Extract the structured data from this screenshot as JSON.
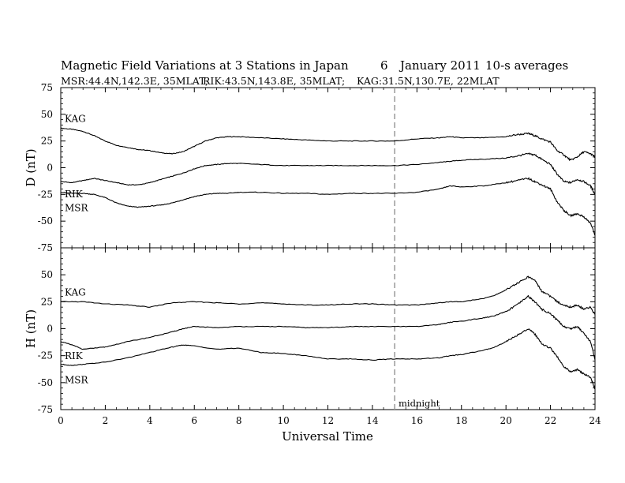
{
  "page": {
    "title_station": "Magnetic Field Variations at 3 Stations in Japan",
    "title_day": "6",
    "title_month_year": "January 2011",
    "title_avg": "10-s averages",
    "subtitle_msr": "MSR:44.4N,142.3E, 35MLAT;",
    "subtitle_rik": "RIK:43.5N,143.8E, 35MLAT;",
    "subtitle_kag": "KAG:31.5N,130.7E, 22MLAT",
    "xlabel": "Universal Time",
    "midnight_label": "midnight"
  },
  "chart_data": [
    {
      "type": "line",
      "panel": "D",
      "ylabel": "D (nT)",
      "xlim": [
        0,
        24
      ],
      "ylim": [
        -75,
        75
      ],
      "yticks": [
        75,
        50,
        25,
        0,
        -25,
        -50,
        -75
      ],
      "xticks": [
        0,
        2,
        4,
        6,
        8,
        10,
        12,
        14,
        16,
        18,
        20,
        22,
        24
      ],
      "midnight_x": 15,
      "series": [
        {
          "name": "KAG",
          "x": [
            0,
            0.5,
            1,
            1.5,
            2,
            2.5,
            3,
            3.5,
            4,
            4.5,
            5,
            5.5,
            6,
            6.5,
            7,
            7.5,
            8,
            9,
            10,
            11,
            12,
            13,
            14,
            15,
            16,
            17,
            17.5,
            18,
            19,
            20,
            20.5,
            21,
            21.3,
            21.6,
            22,
            22.3,
            22.6,
            22.9,
            23.2,
            23.5,
            23.8,
            24
          ],
          "y": [
            37,
            36,
            34,
            30,
            25,
            21,
            19,
            17,
            16,
            14,
            13,
            15,
            20,
            25,
            28,
            29,
            29,
            28,
            27,
            26,
            25,
            25,
            25,
            25,
            27,
            28,
            29,
            28,
            28,
            29,
            31,
            32,
            30,
            27,
            24,
            16,
            12,
            7,
            10,
            15,
            13,
            10
          ]
        },
        {
          "name": "RIK",
          "x": [
            0,
            0.5,
            1,
            1.5,
            2,
            2.5,
            3,
            3.5,
            4,
            4.5,
            5,
            5.5,
            6,
            6.5,
            7,
            7.5,
            8,
            9,
            10,
            11,
            12,
            13,
            14,
            15,
            16,
            17,
            17.5,
            18,
            19,
            20,
            20.5,
            21,
            21.3,
            21.6,
            22,
            22.3,
            22.6,
            22.9,
            23.2,
            23.5,
            23.8,
            24
          ],
          "y": [
            -13,
            -14,
            -12,
            -10,
            -12,
            -14,
            -16,
            -16,
            -14,
            -11,
            -8,
            -5,
            -1,
            2,
            3,
            4,
            4,
            3,
            2,
            2,
            2,
            2,
            2,
            2,
            3,
            5,
            6,
            7,
            8,
            9,
            11,
            13,
            12,
            8,
            3,
            -6,
            -13,
            -14,
            -11,
            -13,
            -17,
            -25
          ]
        },
        {
          "name": "MSR",
          "x": [
            0,
            0.5,
            1,
            1.5,
            2,
            2.5,
            3,
            3.5,
            4,
            4.5,
            5,
            5.5,
            6,
            6.5,
            7,
            7.5,
            8,
            9,
            10,
            11,
            12,
            13,
            14,
            15,
            16,
            17,
            17.5,
            18,
            19,
            20,
            20.5,
            21,
            21.3,
            21.6,
            22,
            22.3,
            22.6,
            22.9,
            23.2,
            23.5,
            23.8,
            24
          ],
          "y": [
            -23,
            -24,
            -24,
            -25,
            -28,
            -33,
            -36,
            -37,
            -36,
            -35,
            -33,
            -30,
            -27,
            -25,
            -24,
            -24,
            -23,
            -23,
            -24,
            -24,
            -25,
            -24,
            -24,
            -24,
            -23,
            -20,
            -17,
            -18,
            -17,
            -14,
            -12,
            -10,
            -13,
            -16,
            -20,
            -32,
            -40,
            -45,
            -43,
            -46,
            -52,
            -63
          ]
        }
      ]
    },
    {
      "type": "line",
      "panel": "H",
      "ylabel": "H (nT)",
      "xlim": [
        0,
        24
      ],
      "ylim": [
        -75,
        75
      ],
      "yticks": [
        50,
        25,
        0,
        -25,
        -50,
        -75
      ],
      "xticks": [
        0,
        2,
        4,
        6,
        8,
        10,
        12,
        14,
        16,
        18,
        20,
        22,
        24
      ],
      "xticklabels": [
        "0",
        "2",
        "4",
        "6",
        "8",
        "10",
        "12",
        "14",
        "16",
        "18",
        "20",
        "22",
        "24"
      ],
      "midnight_x": 15,
      "series": [
        {
          "name": "KAG",
          "x": [
            0,
            1,
            2,
            3,
            4,
            5,
            6,
            7,
            8,
            9,
            10,
            11,
            12,
            13,
            14,
            15,
            16,
            17,
            17.5,
            18,
            19,
            19.5,
            20,
            20.5,
            21,
            21.3,
            21.6,
            22,
            22.3,
            22.6,
            22.9,
            23.2,
            23.5,
            23.8,
            24
          ],
          "y": [
            25,
            25,
            23,
            22,
            20,
            24,
            25,
            24,
            23,
            24,
            23,
            22,
            22,
            23,
            23,
            22,
            22,
            24,
            25,
            25,
            28,
            31,
            36,
            42,
            48,
            45,
            35,
            30,
            25,
            22,
            20,
            22,
            18,
            20,
            13
          ]
        },
        {
          "name": "RIK",
          "x": [
            0,
            0.5,
            1,
            1.5,
            2,
            3,
            4,
            5,
            5.5,
            6,
            7,
            8,
            9,
            10,
            11,
            12,
            13,
            14,
            15,
            16,
            17,
            17.5,
            18,
            19,
            19.5,
            20,
            20.5,
            21,
            21.3,
            21.6,
            22,
            22.3,
            22.6,
            22.9,
            23.2,
            23.5,
            23.8,
            24
          ],
          "y": [
            -12,
            -15,
            -19,
            -18,
            -17,
            -12,
            -8,
            -3,
            0,
            2,
            1,
            2,
            2,
            2,
            1,
            1,
            2,
            2,
            2,
            2,
            4,
            6,
            7,
            10,
            12,
            16,
            22,
            30,
            25,
            18,
            14,
            8,
            2,
            0,
            2,
            -4,
            -12,
            -29
          ]
        },
        {
          "name": "MSR",
          "x": [
            0,
            0.5,
            1,
            2,
            3,
            4,
            5,
            5.5,
            6,
            7,
            8,
            9,
            10,
            11,
            12,
            13,
            14,
            15,
            16,
            17,
            17.5,
            18,
            19,
            19.5,
            20,
            20.5,
            21,
            21.3,
            21.6,
            22,
            22.3,
            22.6,
            22.9,
            23.2,
            23.5,
            23.8,
            24
          ],
          "y": [
            -33,
            -34,
            -33,
            -31,
            -27,
            -22,
            -17,
            -15,
            -16,
            -19,
            -18,
            -22,
            -23,
            -25,
            -28,
            -28,
            -29,
            -28,
            -28,
            -27,
            -25,
            -24,
            -20,
            -17,
            -12,
            -6,
            0,
            -5,
            -14,
            -18,
            -26,
            -35,
            -40,
            -38,
            -42,
            -45,
            -56
          ]
        }
      ]
    }
  ]
}
